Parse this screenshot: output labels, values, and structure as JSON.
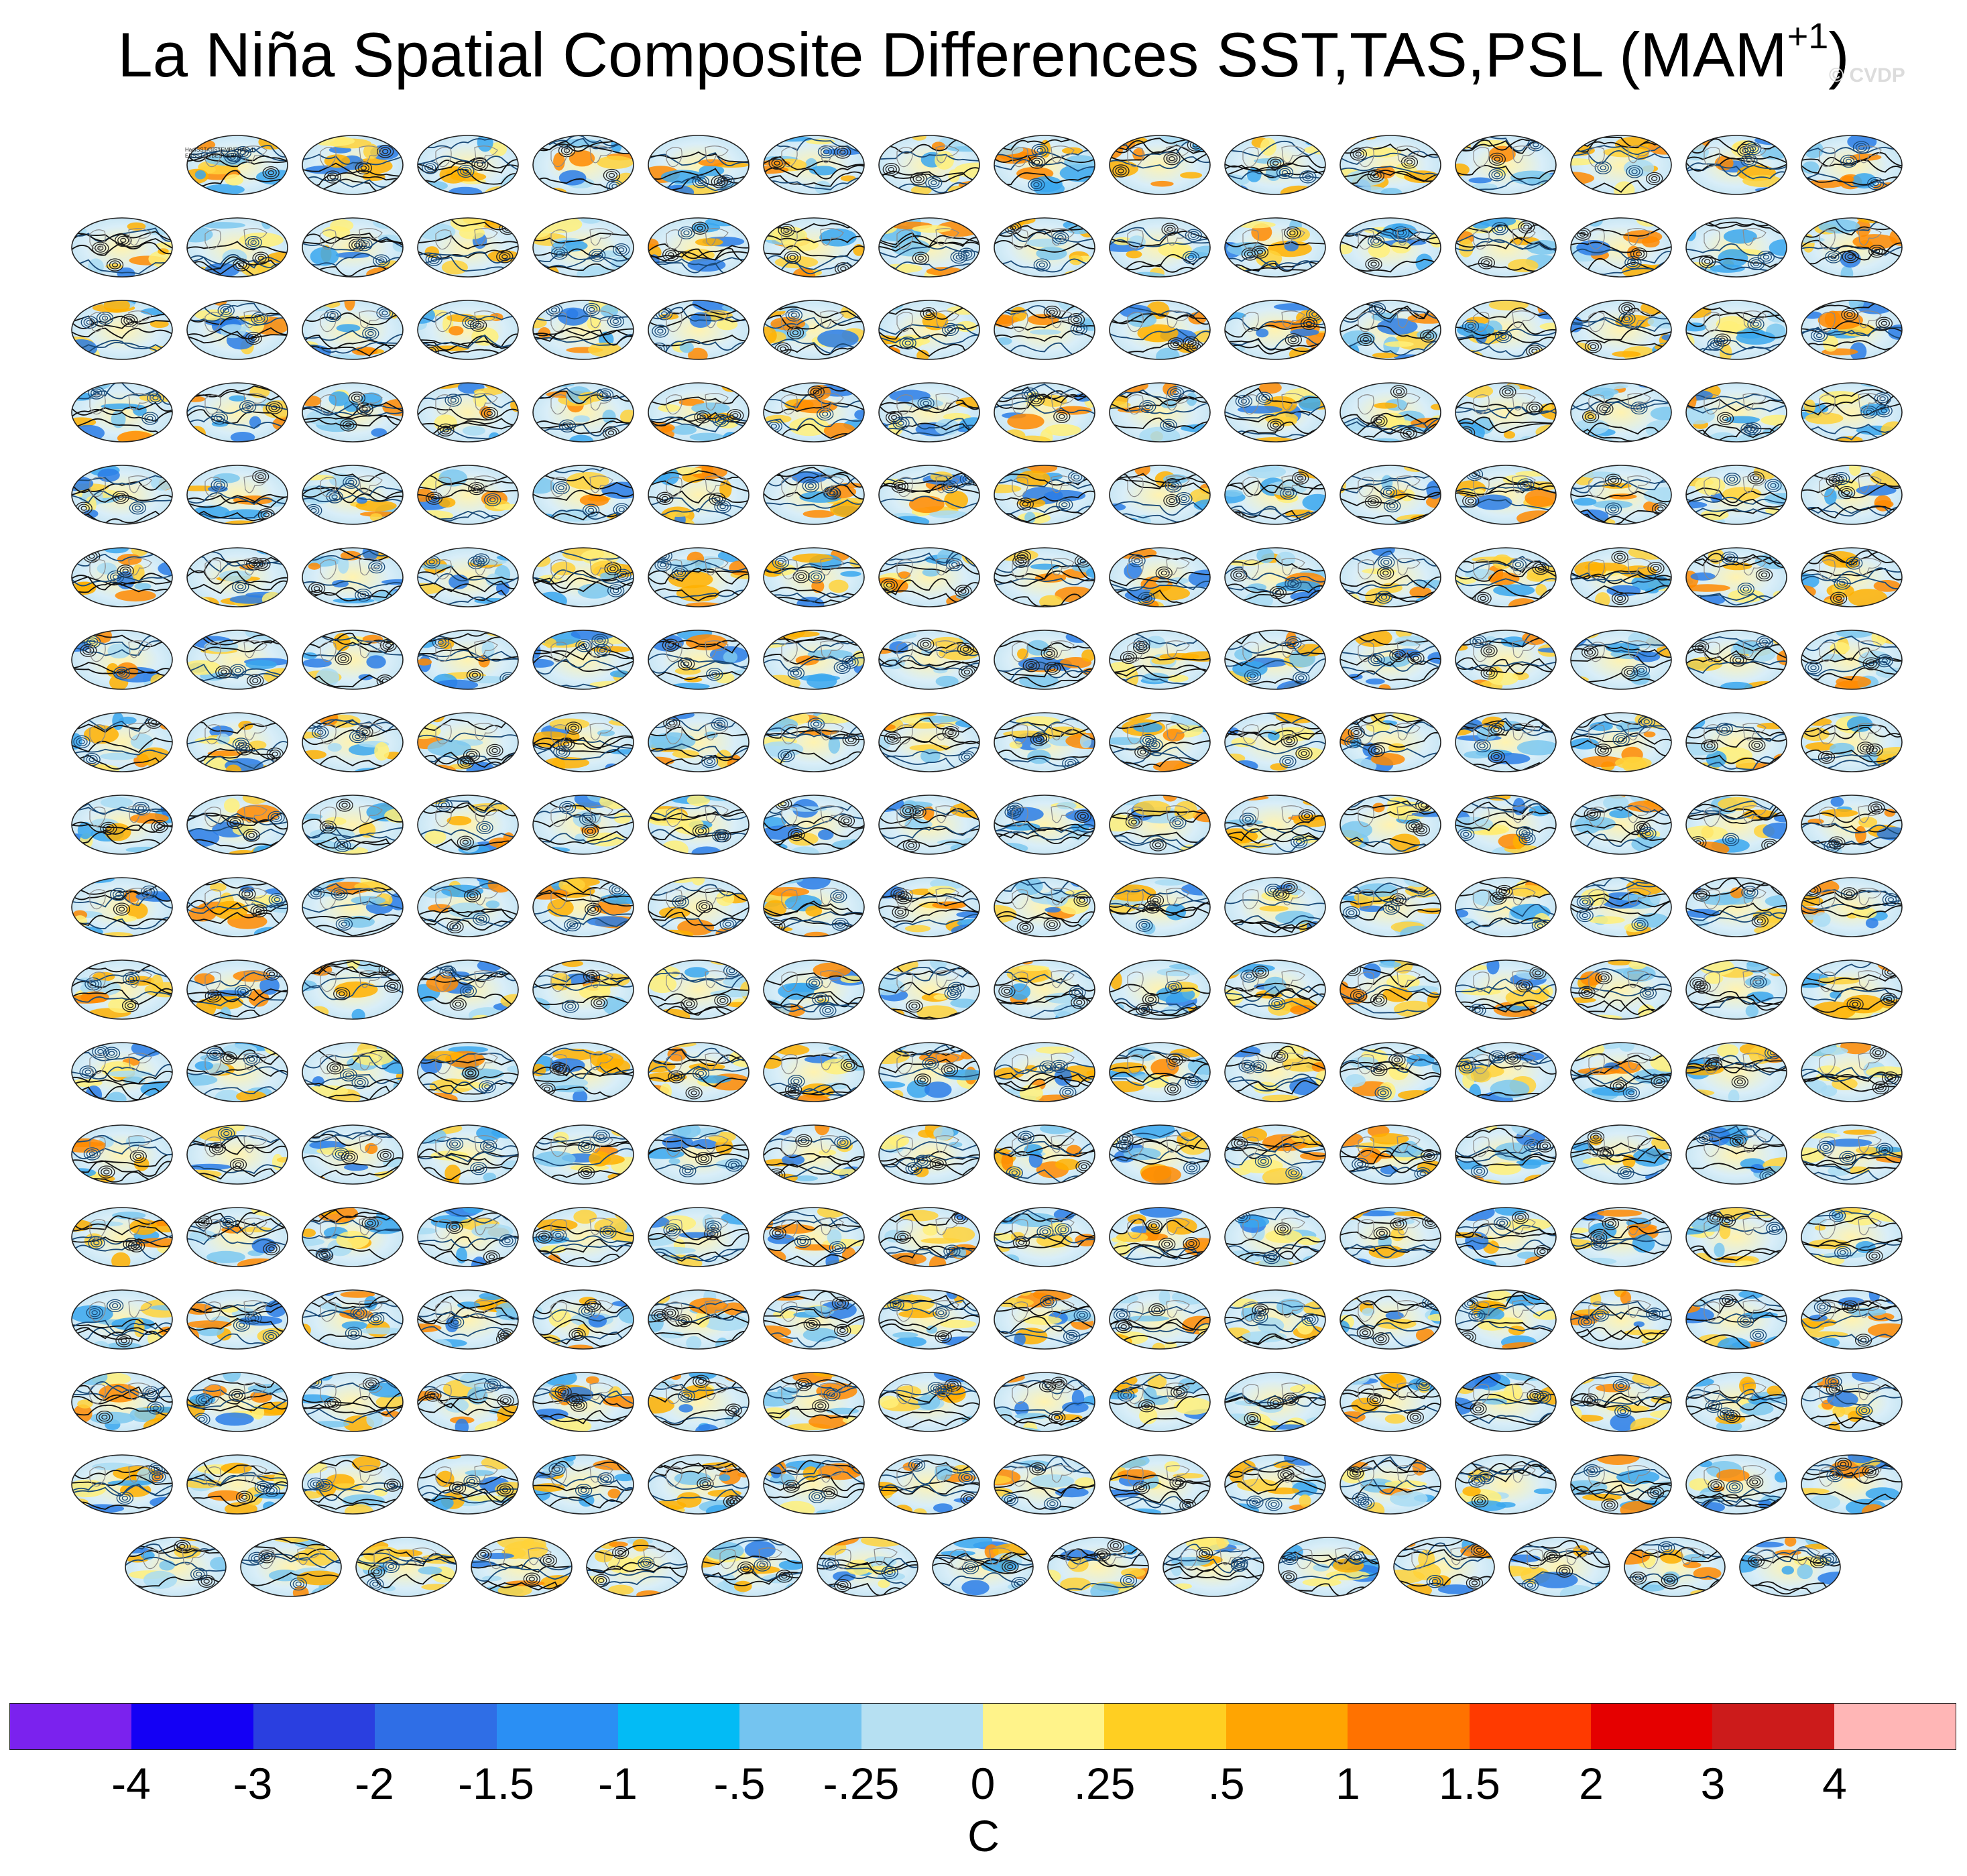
{
  "title": {
    "main": "La Niña Spatial Composite Differences SST,TAS,PSL (MAM",
    "superscript": "+1",
    "close": ")"
  },
  "watermark": "© CVDP",
  "grid": {
    "rows_of_16": 17,
    "bottom_row_count": 15,
    "first_row_offset": 1,
    "first_panel_label_lines": [
      "HadISST/GISTEMP/ERA5_1-",
      "ERSST v5/BEST/ERA5"
    ]
  },
  "colorbar": {
    "colors": [
      "#7b22ee",
      "#1400f5",
      "#2a3fe0",
      "#2f6ee6",
      "#2a8ff4",
      "#03bbf5",
      "#74c4f0",
      "#b6e0f2",
      "#fff38a",
      "#ffcf22",
      "#ffa502",
      "#ff7200",
      "#ff3a00",
      "#e50000",
      "#cc1b1b",
      "#ffb6b6"
    ],
    "tick_labels": [
      "-4",
      "-3",
      "-2",
      "-1.5",
      "-1",
      "-.5",
      "-.25",
      "0",
      ".25",
      ".5",
      "1",
      "1.5",
      "2",
      "3",
      "4"
    ],
    "unit": "C"
  },
  "label_colors": [
    "#3d8fb4",
    "#3d8fb4",
    "#3d8fb4",
    "#8ca0b5",
    "#8ca0b5",
    "#a7b889",
    "#c8c089",
    "#d49b6c",
    "#c87a5c",
    "#c87a5c",
    "#9a8ad8",
    "#9a8ad8",
    "#9a8ad8",
    "#9a8ad8",
    "#9a8ad8",
    "#9a8ad8",
    "#9a8ad8",
    "#9a8ad8"
  ]
}
